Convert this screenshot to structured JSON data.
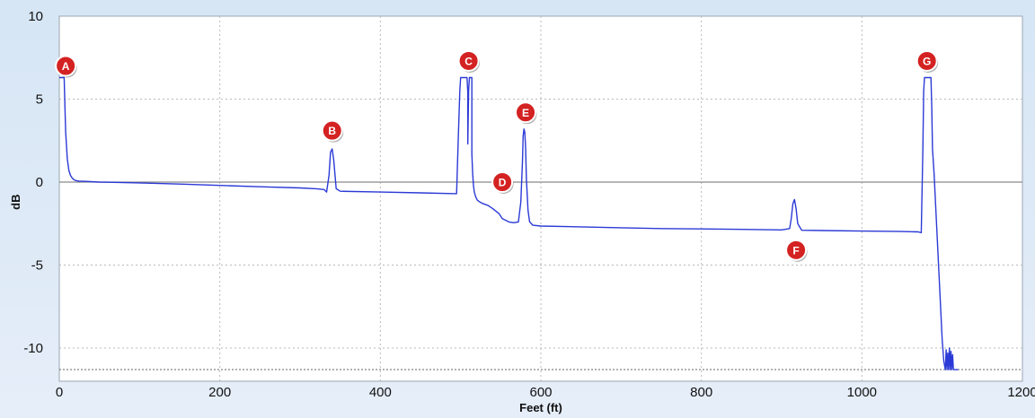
{
  "chart_data": {
    "type": "line",
    "xlabel": "Feet (ft)",
    "ylabel": "dB",
    "xlim": [
      0,
      1200
    ],
    "ylim": [
      -12,
      10
    ],
    "xticks": [
      0,
      200,
      400,
      600,
      800,
      1000,
      1200
    ],
    "yticks": [
      10,
      5,
      0,
      -5,
      -10
    ],
    "xtick_labels": [
      "0",
      "200",
      "400",
      "600",
      "800",
      "1000",
      "1200"
    ],
    "ytick_labels": [
      "10",
      "5",
      "0",
      "-5",
      "-10"
    ],
    "grid": true,
    "zero_line": 0,
    "noise_floor": -11.3,
    "line_color": "#2b3ad6",
    "marker_color": "#d42222",
    "series": [
      {
        "x": [
          0,
          1,
          4,
          6,
          7,
          8,
          10,
          12,
          14,
          16,
          18,
          20,
          25,
          30,
          50,
          100,
          150,
          200,
          250,
          300,
          320,
          330,
          333,
          336,
          338,
          340,
          342,
          345,
          350,
          400,
          450,
          495,
          497,
          499,
          500,
          501,
          508,
          509,
          509,
          510,
          511,
          512,
          513,
          514,
          514,
          514,
          515,
          516,
          517,
          519,
          521,
          524,
          528,
          534,
          540,
          548,
          552,
          556,
          560,
          566,
          572,
          575,
          577,
          578,
          579,
          580,
          581,
          582,
          584,
          586,
          590,
          600,
          650,
          700,
          750,
          800,
          850,
          900,
          910,
          912,
          914,
          916,
          918,
          920,
          925,
          950,
          1000,
          1050,
          1070,
          1074,
          1076,
          1077,
          1078,
          1079,
          1086,
          1087,
          1088,
          1090,
          1092,
          1094,
          1096,
          1098,
          1100,
          1102,
          1104,
          1105,
          1106,
          1107,
          1108,
          1109,
          1110,
          1111,
          1112,
          1113,
          1114,
          1116,
          1120
        ],
        "y": [
          6.3,
          6.3,
          6.3,
          6.3,
          4.5,
          3.0,
          1.4,
          0.7,
          0.4,
          0.25,
          0.15,
          0.1,
          0.05,
          0.05,
          0.0,
          -0.05,
          -0.12,
          -0.2,
          -0.28,
          -0.35,
          -0.4,
          -0.45,
          -0.6,
          0.4,
          1.8,
          2.0,
          1.3,
          -0.4,
          -0.55,
          -0.6,
          -0.65,
          -0.7,
          2.5,
          5.5,
          6.3,
          6.3,
          6.3,
          5.4,
          2.3,
          5.5,
          6.3,
          6.3,
          6.3,
          6.3,
          3.5,
          1.7,
          0.5,
          -0.2,
          -0.6,
          -0.9,
          -1.1,
          -1.2,
          -1.3,
          -1.4,
          -1.6,
          -1.9,
          -2.2,
          -2.3,
          -2.4,
          -2.45,
          -2.4,
          -1.2,
          1.2,
          2.8,
          3.2,
          3.0,
          2.1,
          0.2,
          -1.7,
          -2.4,
          -2.6,
          -2.65,
          -2.7,
          -2.75,
          -2.8,
          -2.82,
          -2.85,
          -2.88,
          -2.8,
          -2.2,
          -1.3,
          -1.05,
          -1.6,
          -2.5,
          -2.9,
          -2.92,
          -2.95,
          -2.98,
          -3.0,
          -3.05,
          2.0,
          5.5,
          6.3,
          6.3,
          6.3,
          4.5,
          2.0,
          0.5,
          -1.5,
          -3.5,
          -5.5,
          -7.5,
          -9.5,
          -10.8,
          -11.3,
          -10.1,
          -11.3,
          -10.3,
          -11.3,
          -10.0,
          -11.3,
          -10.2,
          -11.3,
          -10.4,
          -11.3,
          -11.3,
          -11.3
        ]
      }
    ],
    "markers": [
      {
        "label": "A",
        "x": 8,
        "y": 7.0
      },
      {
        "label": "B",
        "x": 340,
        "y": 3.1
      },
      {
        "label": "C",
        "x": 510,
        "y": 7.3
      },
      {
        "label": "D",
        "x": 552,
        "y": 0.0
      },
      {
        "label": "E",
        "x": 581,
        "y": 4.2
      },
      {
        "label": "F",
        "x": 918,
        "y": -4.1
      },
      {
        "label": "G",
        "x": 1081,
        "y": 7.3
      }
    ]
  }
}
